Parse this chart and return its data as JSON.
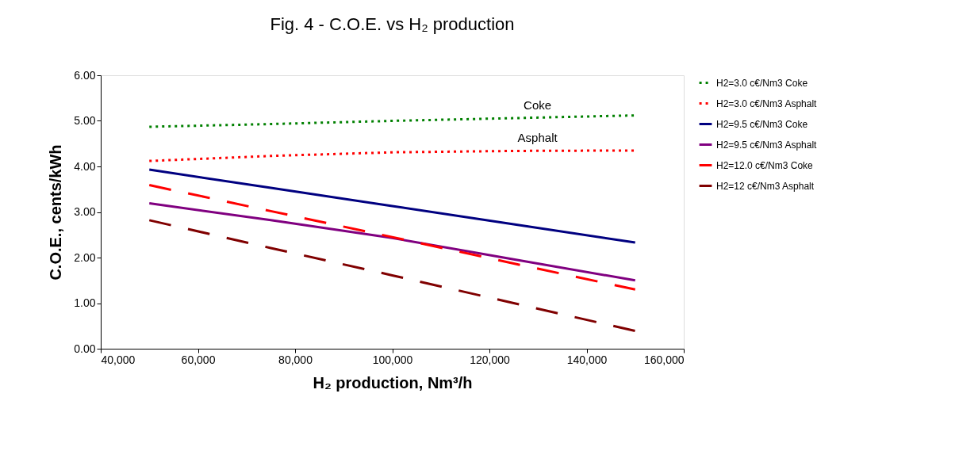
{
  "chart_data": {
    "type": "line",
    "title": "Fig. 4 - C.O.E. vs H₂ production",
    "xlabel": "H₂ production, Nm³/h",
    "ylabel": "C.O.E., cents/kWh",
    "x": [
      50000,
      75000,
      100000,
      125000,
      150000
    ],
    "series": [
      {
        "name": "H2=3.0 c€/Nm3 Coke",
        "color": "#008000",
        "line_style": "dotted",
        "values": [
          4.87,
          4.93,
          5.0,
          5.06,
          5.12
        ]
      },
      {
        "name": "H2=3.0 c€/Nm3 Asphalt",
        "color": "#ff0000",
        "line_style": "dotted",
        "values": [
          4.12,
          4.23,
          4.31,
          4.34,
          4.35
        ]
      },
      {
        "name": "H2=9.5 c€/Nm3 Coke",
        "color": "#000080",
        "line_style": "solid",
        "values": [
          3.93,
          3.53,
          3.13,
          2.73,
          2.33
        ]
      },
      {
        "name": "H2=9.5 c€/Nm3 Asphalt",
        "color": "#800080",
        "line_style": "solid",
        "values": [
          3.19,
          2.82,
          2.43,
          1.96,
          1.5
        ]
      },
      {
        "name": "H2=12.0 c€/Nm3 Coke",
        "color": "#ff0000",
        "line_style": "dashed",
        "values": [
          3.59,
          3.02,
          2.45,
          1.87,
          1.3
        ]
      },
      {
        "name": "H2=12 c€/Nm3 Asphalt",
        "color": "#800000",
        "line_style": "dashed",
        "values": [
          2.82,
          2.21,
          1.61,
          1.0,
          0.39
        ]
      }
    ],
    "annotations": [
      "Coke",
      "Asphalt"
    ],
    "xlim": [
      40000,
      160000
    ],
    "xticks": [
      {
        "value": 40000,
        "label": "40,000"
      },
      {
        "value": 60000,
        "label": "60,000"
      },
      {
        "value": 80000,
        "label": "80,000"
      },
      {
        "value": 100000,
        "label": "100,000"
      },
      {
        "value": 120000,
        "label": "120,000"
      },
      {
        "value": 140000,
        "label": "140,000"
      },
      {
        "value": 160000,
        "label": "160,000"
      }
    ],
    "ylim": [
      0,
      6
    ],
    "yticks": [
      {
        "value": 0,
        "label": "0.00"
      },
      {
        "value": 1,
        "label": "1.00"
      },
      {
        "value": 2,
        "label": "2.00"
      },
      {
        "value": 3,
        "label": "3.00"
      },
      {
        "value": 4,
        "label": "4.00"
      },
      {
        "value": 5,
        "label": "5.00"
      },
      {
        "value": 6,
        "label": "6.00"
      }
    ],
    "grid": false,
    "legend": "right",
    "marker": "none"
  }
}
